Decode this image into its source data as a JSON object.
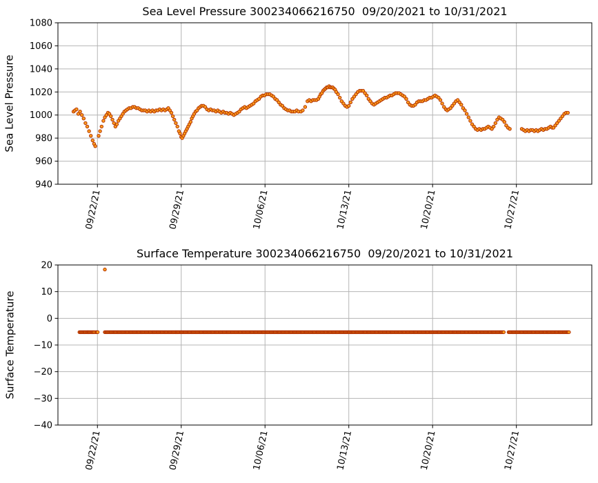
{
  "figure": {
    "background": "#ffffff",
    "marker_fill": "#ffa01e",
    "marker_edge": "#b03000",
    "grid_color": "#b4b4b4",
    "spine_color": "#000000"
  },
  "chart_data": [
    {
      "type": "scatter",
      "title": "Sea Level Pressure 300234066216750  09/20/2021 to 10/31/2021",
      "xlabel": "",
      "ylabel": "Sea Level Pressure",
      "ylim": [
        940,
        1080
      ],
      "yticks": [
        {
          "value": 940,
          "label": "940"
        },
        {
          "value": 960,
          "label": "960"
        },
        {
          "value": 980,
          "label": "980"
        },
        {
          "value": 1000,
          "label": "1000"
        },
        {
          "value": 1020,
          "label": "1020"
        },
        {
          "value": 1040,
          "label": "1040"
        },
        {
          "value": 1060,
          "label": "1060"
        },
        {
          "value": 1080,
          "label": "1080"
        }
      ],
      "xlim_days": [
        -1.3,
        43.3
      ],
      "x_day_zero": "09/20/21",
      "xticks": [
        {
          "day": 2,
          "label": "09/22/21"
        },
        {
          "day": 9,
          "label": "09/29/21"
        },
        {
          "day": 16,
          "label": "10/06/21"
        },
        {
          "day": 23,
          "label": "10/13/21"
        },
        {
          "day": 30,
          "label": "10/20/21"
        },
        {
          "day": 37,
          "label": "10/27/21"
        }
      ],
      "x_tick_rotation": 78,
      "grid": true,
      "legend": null,
      "points": [
        [
          0.0,
          1003
        ],
        [
          0.12,
          1004
        ],
        [
          0.25,
          1005
        ],
        [
          0.4,
          1001
        ],
        [
          0.55,
          1003
        ],
        [
          0.7,
          1000
        ],
        [
          0.85,
          997
        ],
        [
          1.0,
          993
        ],
        [
          1.15,
          990
        ],
        [
          1.3,
          986
        ],
        [
          1.45,
          982
        ],
        [
          1.6,
          978
        ],
        [
          1.72,
          975
        ],
        [
          1.82,
          973
        ],
        [
          2.1,
          982
        ],
        [
          2.22,
          986
        ],
        [
          2.35,
          990
        ],
        [
          2.5,
          995
        ],
        [
          2.62,
          998
        ],
        [
          2.75,
          1000
        ],
        [
          2.88,
          1002
        ],
        [
          3.0,
          1001
        ],
        [
          3.12,
          999
        ],
        [
          3.25,
          996
        ],
        [
          3.38,
          993
        ],
        [
          3.5,
          990
        ],
        [
          3.62,
          992
        ],
        [
          3.75,
          995
        ],
        [
          3.88,
          997
        ],
        [
          4.0,
          999
        ],
        [
          4.12,
          1001
        ],
        [
          4.25,
          1003
        ],
        [
          4.38,
          1004
        ],
        [
          4.5,
          1005
        ],
        [
          4.65,
          1006
        ],
        [
          4.8,
          1006
        ],
        [
          4.95,
          1007
        ],
        [
          5.1,
          1007
        ],
        [
          5.25,
          1006
        ],
        [
          5.4,
          1006
        ],
        [
          5.55,
          1005
        ],
        [
          5.7,
          1004
        ],
        [
          5.85,
          1004
        ],
        [
          6.0,
          1004
        ],
        [
          6.15,
          1003
        ],
        [
          6.3,
          1004
        ],
        [
          6.45,
          1003
        ],
        [
          6.6,
          1004
        ],
        [
          6.75,
          1003
        ],
        [
          6.9,
          1004
        ],
        [
          7.05,
          1004
        ],
        [
          7.2,
          1005
        ],
        [
          7.35,
          1004
        ],
        [
          7.5,
          1005
        ],
        [
          7.65,
          1004
        ],
        [
          7.8,
          1005
        ],
        [
          7.92,
          1006
        ],
        [
          8.05,
          1004
        ],
        [
          8.18,
          1002
        ],
        [
          8.3,
          999
        ],
        [
          8.42,
          996
        ],
        [
          8.55,
          993
        ],
        [
          8.68,
          990
        ],
        [
          8.8,
          986
        ],
        [
          8.9,
          984
        ],
        [
          9.0,
          981
        ],
        [
          9.08,
          980
        ],
        [
          9.18,
          982
        ],
        [
          9.28,
          984
        ],
        [
          9.38,
          986
        ],
        [
          9.48,
          988
        ],
        [
          9.58,
          990
        ],
        [
          9.68,
          992
        ],
        [
          9.78,
          994
        ],
        [
          9.88,
          997
        ],
        [
          9.98,
          999
        ],
        [
          10.08,
          1001
        ],
        [
          10.2,
          1003
        ],
        [
          10.32,
          1004
        ],
        [
          10.45,
          1006
        ],
        [
          10.58,
          1007
        ],
        [
          10.7,
          1008
        ],
        [
          10.85,
          1008
        ],
        [
          11.0,
          1007
        ],
        [
          11.15,
          1005
        ],
        [
          11.3,
          1004
        ],
        [
          11.45,
          1005
        ],
        [
          11.6,
          1004
        ],
        [
          11.75,
          1004
        ],
        [
          11.9,
          1003
        ],
        [
          12.05,
          1004
        ],
        [
          12.2,
          1003
        ],
        [
          12.35,
          1002
        ],
        [
          12.5,
          1003
        ],
        [
          12.65,
          1002
        ],
        [
          12.8,
          1002
        ],
        [
          12.95,
          1001
        ],
        [
          13.1,
          1002
        ],
        [
          13.25,
          1001
        ],
        [
          13.4,
          1000
        ],
        [
          13.55,
          1001
        ],
        [
          13.7,
          1002
        ],
        [
          13.85,
          1003
        ],
        [
          14.0,
          1005
        ],
        [
          14.15,
          1006
        ],
        [
          14.3,
          1007
        ],
        [
          14.45,
          1006
        ],
        [
          14.6,
          1007
        ],
        [
          14.75,
          1008
        ],
        [
          14.9,
          1009
        ],
        [
          15.05,
          1010
        ],
        [
          15.2,
          1012
        ],
        [
          15.35,
          1013
        ],
        [
          15.5,
          1014
        ],
        [
          15.65,
          1016
        ],
        [
          15.8,
          1017
        ],
        [
          15.95,
          1017
        ],
        [
          16.1,
          1018
        ],
        [
          16.25,
          1018
        ],
        [
          16.4,
          1018
        ],
        [
          16.55,
          1017
        ],
        [
          16.7,
          1016
        ],
        [
          16.85,
          1014
        ],
        [
          17.0,
          1013
        ],
        [
          17.15,
          1011
        ],
        [
          17.3,
          1009
        ],
        [
          17.45,
          1008
        ],
        [
          17.6,
          1006
        ],
        [
          17.75,
          1005
        ],
        [
          17.9,
          1004
        ],
        [
          18.05,
          1004
        ],
        [
          18.2,
          1003
        ],
        [
          18.35,
          1003
        ],
        [
          18.5,
          1003
        ],
        [
          18.65,
          1004
        ],
        [
          18.8,
          1003
        ],
        [
          19.0,
          1003
        ],
        [
          19.15,
          1004
        ],
        [
          19.35,
          1007
        ],
        [
          19.55,
          1012
        ],
        [
          19.7,
          1013
        ],
        [
          19.85,
          1012
        ],
        [
          20.0,
          1013
        ],
        [
          20.15,
          1013
        ],
        [
          20.3,
          1013
        ],
        [
          20.45,
          1014
        ],
        [
          20.55,
          1016
        ],
        [
          20.65,
          1018
        ],
        [
          20.75,
          1019
        ],
        [
          20.85,
          1021
        ],
        [
          20.95,
          1022
        ],
        [
          21.05,
          1023
        ],
        [
          21.15,
          1024
        ],
        [
          21.25,
          1024
        ],
        [
          21.35,
          1025
        ],
        [
          21.45,
          1024
        ],
        [
          21.55,
          1024
        ],
        [
          21.65,
          1024
        ],
        [
          21.75,
          1023
        ],
        [
          21.85,
          1022
        ],
        [
          21.95,
          1020
        ],
        [
          22.1,
          1018
        ],
        [
          22.25,
          1015
        ],
        [
          22.4,
          1012
        ],
        [
          22.55,
          1010
        ],
        [
          22.7,
          1008
        ],
        [
          22.85,
          1007
        ],
        [
          23.0,
          1008
        ],
        [
          23.15,
          1011
        ],
        [
          23.3,
          1014
        ],
        [
          23.45,
          1016
        ],
        [
          23.6,
          1018
        ],
        [
          23.75,
          1020
        ],
        [
          23.9,
          1021
        ],
        [
          24.05,
          1021
        ],
        [
          24.2,
          1021
        ],
        [
          24.35,
          1019
        ],
        [
          24.5,
          1017
        ],
        [
          24.65,
          1014
        ],
        [
          24.8,
          1012
        ],
        [
          24.95,
          1010
        ],
        [
          25.1,
          1009
        ],
        [
          25.25,
          1010
        ],
        [
          25.4,
          1011
        ],
        [
          25.55,
          1012
        ],
        [
          25.7,
          1013
        ],
        [
          25.85,
          1014
        ],
        [
          26.0,
          1015
        ],
        [
          26.15,
          1015
        ],
        [
          26.3,
          1016
        ],
        [
          26.45,
          1017
        ],
        [
          26.6,
          1017
        ],
        [
          26.75,
          1018
        ],
        [
          26.9,
          1019
        ],
        [
          27.05,
          1019
        ],
        [
          27.2,
          1019
        ],
        [
          27.35,
          1018
        ],
        [
          27.5,
          1017
        ],
        [
          27.65,
          1016
        ],
        [
          27.8,
          1014
        ],
        [
          27.95,
          1011
        ],
        [
          28.1,
          1009
        ],
        [
          28.25,
          1008
        ],
        [
          28.4,
          1008
        ],
        [
          28.55,
          1009
        ],
        [
          28.7,
          1011
        ],
        [
          28.85,
          1012
        ],
        [
          29.0,
          1012
        ],
        [
          29.15,
          1012
        ],
        [
          29.3,
          1013
        ],
        [
          29.45,
          1013
        ],
        [
          29.6,
          1014
        ],
        [
          29.75,
          1015
        ],
        [
          29.9,
          1015
        ],
        [
          30.05,
          1016
        ],
        [
          30.2,
          1017
        ],
        [
          30.35,
          1016
        ],
        [
          30.5,
          1015
        ],
        [
          30.65,
          1013
        ],
        [
          30.8,
          1010
        ],
        [
          30.95,
          1007
        ],
        [
          31.1,
          1005
        ],
        [
          31.22,
          1004
        ],
        [
          31.35,
          1005
        ],
        [
          31.5,
          1006
        ],
        [
          31.65,
          1008
        ],
        [
          31.8,
          1010
        ],
        [
          31.95,
          1012
        ],
        [
          32.1,
          1013
        ],
        [
          32.25,
          1011
        ],
        [
          32.4,
          1009
        ],
        [
          32.55,
          1006
        ],
        [
          32.7,
          1004
        ],
        [
          32.85,
          1001
        ],
        [
          33.0,
          998
        ],
        [
          33.15,
          995
        ],
        [
          33.3,
          992
        ],
        [
          33.45,
          990
        ],
        [
          33.6,
          988
        ],
        [
          33.75,
          987
        ],
        [
          33.9,
          988
        ],
        [
          34.05,
          987
        ],
        [
          34.2,
          988
        ],
        [
          34.35,
          988
        ],
        [
          34.5,
          989
        ],
        [
          34.65,
          990
        ],
        [
          34.8,
          989
        ],
        [
          34.95,
          988
        ],
        [
          35.1,
          990
        ],
        [
          35.25,
          993
        ],
        [
          35.4,
          996
        ],
        [
          35.55,
          998
        ],
        [
          35.7,
          997
        ],
        [
          35.85,
          996
        ],
        [
          36.0,
          994
        ],
        [
          36.15,
          991
        ],
        [
          36.3,
          989
        ],
        [
          36.45,
          988
        ],
        [
          37.45,
          988
        ],
        [
          37.6,
          987
        ],
        [
          37.75,
          986
        ],
        [
          37.9,
          987
        ],
        [
          38.05,
          986
        ],
        [
          38.2,
          987
        ],
        [
          38.35,
          987
        ],
        [
          38.5,
          986
        ],
        [
          38.65,
          987
        ],
        [
          38.8,
          986
        ],
        [
          38.95,
          987
        ],
        [
          39.1,
          988
        ],
        [
          39.25,
          987
        ],
        [
          39.4,
          988
        ],
        [
          39.55,
          988
        ],
        [
          39.7,
          989
        ],
        [
          39.85,
          990
        ],
        [
          40.0,
          989
        ],
        [
          40.1,
          989
        ],
        [
          40.25,
          991
        ],
        [
          40.4,
          993
        ],
        [
          40.55,
          995
        ],
        [
          40.7,
          997
        ],
        [
          40.85,
          999
        ],
        [
          41.0,
          1001
        ],
        [
          41.15,
          1002
        ],
        [
          41.3,
          1002
        ]
      ]
    },
    {
      "type": "scatter",
      "title": "Surface Temperature 300234066216750  09/20/2021 to 10/31/2021",
      "xlabel": "",
      "ylabel": "Surface Temperature",
      "ylim": [
        -40,
        20
      ],
      "yticks": [
        {
          "value": -40,
          "label": "−40"
        },
        {
          "value": -30,
          "label": "−30"
        },
        {
          "value": -20,
          "label": "−20"
        },
        {
          "value": -10,
          "label": "−10"
        },
        {
          "value": 0,
          "label": "0"
        },
        {
          "value": 10,
          "label": "10"
        },
        {
          "value": 20,
          "label": "20"
        }
      ],
      "xlim_days": [
        -1.3,
        43.3
      ],
      "x_day_zero": "09/20/21",
      "xticks": [
        {
          "day": 2,
          "label": "09/22/21"
        },
        {
          "day": 9,
          "label": "09/29/21"
        },
        {
          "day": 16,
          "label": "10/06/21"
        },
        {
          "day": 23,
          "label": "10/13/21"
        },
        {
          "day": 30,
          "label": "10/20/21"
        },
        {
          "day": 37,
          "label": "10/27/21"
        }
      ],
      "x_tick_rotation": 78,
      "grid": true,
      "legend": null,
      "flat_segments": [
        {
          "x_start": 0.5,
          "x_end": 1.78,
          "y": -5.2
        },
        {
          "x_start": 1.88,
          "x_end": 2.02,
          "y": -5.2
        },
        {
          "x_start": 2.62,
          "x_end": 36.0,
          "y": -5.2
        },
        {
          "x_start": 36.35,
          "x_end": 41.45,
          "y": -5.2
        }
      ],
      "point_step_days": 0.07,
      "outlier_points": [
        [
          2.62,
          18.3
        ]
      ]
    }
  ]
}
